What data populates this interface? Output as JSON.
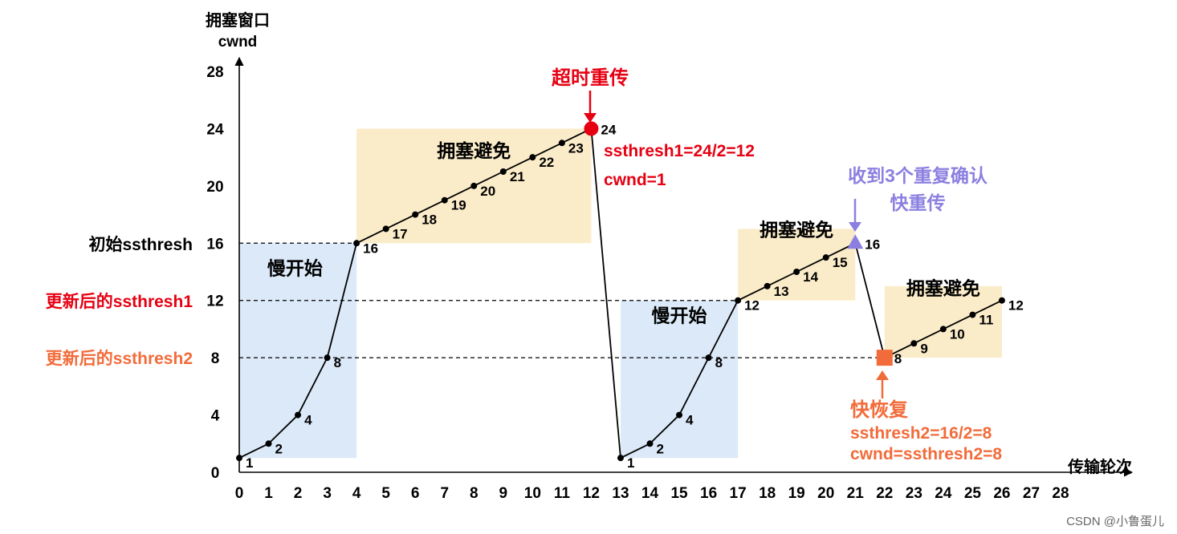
{
  "watermark": "CSDN @小鲁蛋儿",
  "chart_data": {
    "type": "line",
    "ylabel": "拥塞窗口",
    "ylabel_sub": "cwnd",
    "xlabel": "传输轮次",
    "xlim": [
      0,
      28
    ],
    "ylim": [
      0,
      28
    ],
    "x_ticks": [
      0,
      1,
      2,
      3,
      4,
      5,
      6,
      7,
      8,
      9,
      10,
      11,
      12,
      13,
      14,
      15,
      16,
      17,
      18,
      19,
      20,
      21,
      22,
      23,
      24,
      25,
      26,
      27,
      28
    ],
    "y_ticks": [
      0,
      4,
      8,
      12,
      16,
      20,
      24,
      28
    ],
    "colors": {
      "axis": "#000000",
      "line": "#000000",
      "red": "#e60012",
      "orange": "#f26b3a",
      "purple": "#8b7fe0",
      "slow_start_bg": "#dbe9f8",
      "avoid_bg": "#fbecc9"
    },
    "series": [
      {
        "points": [
          {
            "x": 0,
            "y": 1,
            "label": "1"
          },
          {
            "x": 1,
            "y": 2,
            "label": "2"
          },
          {
            "x": 2,
            "y": 4,
            "label": "4"
          },
          {
            "x": 3,
            "y": 8,
            "label": "8"
          },
          {
            "x": 4,
            "y": 16,
            "label": "16"
          },
          {
            "x": 5,
            "y": 17,
            "label": "17"
          },
          {
            "x": 6,
            "y": 18,
            "label": "18"
          },
          {
            "x": 7,
            "y": 19,
            "label": "19"
          },
          {
            "x": 8,
            "y": 20,
            "label": "20"
          },
          {
            "x": 9,
            "y": 21,
            "label": "21"
          },
          {
            "x": 10,
            "y": 22,
            "label": "22"
          },
          {
            "x": 11,
            "y": 23,
            "label": "23"
          },
          {
            "x": 12,
            "y": 24,
            "label": "24",
            "marker": "red-circle"
          },
          {
            "x": 13,
            "y": 1,
            "label": "1"
          },
          {
            "x": 14,
            "y": 2,
            "label": "2"
          },
          {
            "x": 15,
            "y": 4,
            "label": "4"
          },
          {
            "x": 16,
            "y": 8,
            "label": "8"
          },
          {
            "x": 17,
            "y": 12,
            "label": "12"
          },
          {
            "x": 18,
            "y": 13,
            "label": "13"
          },
          {
            "x": 19,
            "y": 14,
            "label": "14"
          },
          {
            "x": 20,
            "y": 15,
            "label": "15"
          },
          {
            "x": 21,
            "y": 16,
            "label": "16",
            "marker": "purple-triangle"
          },
          {
            "x": 22,
            "y": 8,
            "label": "8",
            "marker": "orange-square"
          },
          {
            "x": 23,
            "y": 9,
            "label": "9"
          },
          {
            "x": 24,
            "y": 10,
            "label": "10"
          },
          {
            "x": 25,
            "y": 11,
            "label": "11"
          },
          {
            "x": 26,
            "y": 12,
            "label": "12"
          }
        ]
      }
    ],
    "thresholds": [
      {
        "y": 16,
        "label": "初始ssthresh",
        "color": "#000000",
        "x_end": 4
      },
      {
        "y": 12,
        "label": "更新后的ssthresh1",
        "color": "#e60012",
        "x_end": 17
      },
      {
        "y": 8,
        "label": "更新后的ssthresh2",
        "color": "#f26b3a",
        "x_end": 22
      }
    ],
    "phases": [
      {
        "label": "慢开始",
        "kind": "slow",
        "x_range": [
          0,
          4
        ],
        "y_range": [
          1,
          16
        ]
      },
      {
        "label": "拥塞避免",
        "kind": "avoid",
        "x_range": [
          4,
          12
        ],
        "y_range": [
          16,
          24
        ]
      },
      {
        "label": "慢开始",
        "kind": "slow",
        "x_range": [
          13,
          17
        ],
        "y_range": [
          1,
          12
        ]
      },
      {
        "label": "拥塞避免",
        "kind": "avoid",
        "x_range": [
          17,
          21
        ],
        "y_range": [
          12,
          17
        ]
      },
      {
        "label": "拥塞避免",
        "kind": "avoid",
        "x_range": [
          22,
          26
        ],
        "y_range": [
          8,
          13
        ]
      }
    ],
    "annotations": {
      "timeout": {
        "title": "超时重传",
        "lines": [
          "ssthresh1=24/2=12",
          "cwnd=1"
        ]
      },
      "triple_ack": {
        "lines": [
          "收到3个重复确认",
          "快重传"
        ]
      },
      "fast_recovery": {
        "title": "快恢复",
        "lines": [
          "ssthresh2=16/2=8",
          "cwnd=ssthresh2=8"
        ]
      }
    }
  }
}
